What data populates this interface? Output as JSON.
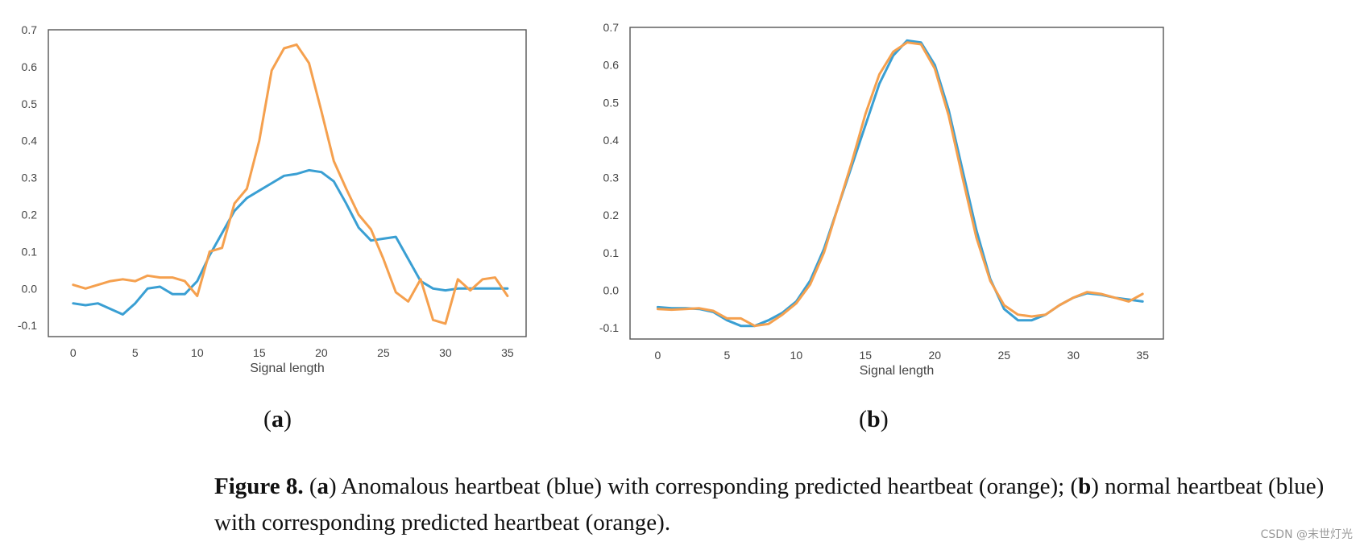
{
  "chart_data": [
    {
      "type": "line",
      "id": "a",
      "panel_label": "a",
      "xlabel": "Signal length",
      "ylabel": "",
      "xlim": [
        -2,
        36.5
      ],
      "ylim": [
        -0.13,
        0.7
      ],
      "xticks": [
        0,
        5,
        10,
        15,
        20,
        25,
        30,
        35
      ],
      "yticks": [
        -0.1,
        0.0,
        0.1,
        0.2,
        0.3,
        0.4,
        0.5,
        0.6,
        0.7
      ],
      "ytick_labels": [
        "-0.1",
        "0.0",
        "0.1",
        "0.2",
        "0.3",
        "0.4",
        "0.5",
        "0.6",
        "0.7"
      ],
      "x": [
        0,
        1,
        2,
        3,
        4,
        5,
        6,
        7,
        8,
        9,
        10,
        11,
        12,
        13,
        14,
        15,
        16,
        17,
        18,
        19,
        20,
        21,
        22,
        23,
        24,
        25,
        26,
        27,
        28,
        29,
        30,
        31,
        32,
        33,
        34,
        35
      ],
      "series": [
        {
          "name": "Anomalous heartbeat",
          "color": "#3a9fd3",
          "values": [
            -0.04,
            -0.045,
            -0.04,
            -0.055,
            -0.07,
            -0.04,
            0.0,
            0.005,
            -0.015,
            -0.015,
            0.02,
            0.09,
            0.15,
            0.21,
            0.245,
            0.265,
            0.285,
            0.305,
            0.31,
            0.32,
            0.315,
            0.29,
            0.23,
            0.165,
            0.13,
            0.135,
            0.14,
            0.08,
            0.02,
            0.0,
            -0.005,
            0.0,
            0.0,
            0.0,
            0.0,
            0.0
          ]
        },
        {
          "name": "Predicted heartbeat",
          "color": "#f5a04e",
          "values": [
            0.01,
            0.0,
            0.01,
            0.02,
            0.025,
            0.02,
            0.035,
            0.03,
            0.03,
            0.02,
            -0.02,
            0.1,
            0.11,
            0.23,
            0.27,
            0.4,
            0.59,
            0.65,
            0.66,
            0.61,
            0.48,
            0.345,
            0.27,
            0.2,
            0.16,
            0.08,
            -0.01,
            -0.035,
            0.025,
            -0.085,
            -0.095,
            0.025,
            -0.005,
            0.025,
            0.03,
            -0.02
          ]
        }
      ]
    },
    {
      "type": "line",
      "id": "b",
      "panel_label": "b",
      "xlabel": "Signal length",
      "ylabel": "",
      "xlim": [
        -2,
        36.5
      ],
      "ylim": [
        -0.13,
        0.7
      ],
      "xticks": [
        0,
        5,
        10,
        15,
        20,
        25,
        30,
        35
      ],
      "yticks": [
        -0.1,
        0.0,
        0.1,
        0.2,
        0.3,
        0.4,
        0.5,
        0.6,
        0.7
      ],
      "ytick_labels": [
        "-0.1",
        "0.0",
        "0.1",
        "0.2",
        "0.3",
        "0.4",
        "0.5",
        "0.6",
        "0.7"
      ],
      "x": [
        0,
        1,
        2,
        3,
        4,
        5,
        6,
        7,
        8,
        9,
        10,
        11,
        12,
        13,
        14,
        15,
        16,
        17,
        18,
        19,
        20,
        21,
        22,
        23,
        24,
        25,
        26,
        27,
        28,
        29,
        30,
        31,
        32,
        33,
        34,
        35
      ],
      "series": [
        {
          "name": "Normal heartbeat",
          "color": "#3a9fd3",
          "values": [
            -0.045,
            -0.048,
            -0.048,
            -0.05,
            -0.058,
            -0.08,
            -0.095,
            -0.095,
            -0.08,
            -0.06,
            -0.03,
            0.025,
            0.11,
            0.22,
            0.33,
            0.44,
            0.55,
            0.625,
            0.665,
            0.66,
            0.6,
            0.48,
            0.32,
            0.16,
            0.03,
            -0.05,
            -0.08,
            -0.08,
            -0.065,
            -0.04,
            -0.02,
            -0.008,
            -0.012,
            -0.02,
            -0.025,
            -0.03
          ]
        },
        {
          "name": "Predicted heartbeat",
          "color": "#f5a04e",
          "values": [
            -0.05,
            -0.052,
            -0.05,
            -0.048,
            -0.055,
            -0.075,
            -0.075,
            -0.095,
            -0.09,
            -0.065,
            -0.035,
            0.015,
            0.1,
            0.22,
            0.34,
            0.47,
            0.575,
            0.635,
            0.66,
            0.655,
            0.59,
            0.465,
            0.3,
            0.14,
            0.025,
            -0.04,
            -0.065,
            -0.07,
            -0.065,
            -0.04,
            -0.02,
            -0.005,
            -0.01,
            -0.02,
            -0.03,
            -0.01
          ]
        }
      ]
    }
  ],
  "labels": {
    "panel_a": "a",
    "panel_b": "b"
  },
  "caption": {
    "figure": "Figure 8.",
    "part_a_letter": "a",
    "part_a_text": ") Anomalous heartbeat (blue) with corresponding predicted heartbeat (orange); (",
    "part_b_letter": "b",
    "part_b_text": ") normal heartbeat (blue) with corresponding predicted heartbeat (orange)."
  },
  "watermark": "CSDN @末世灯光"
}
